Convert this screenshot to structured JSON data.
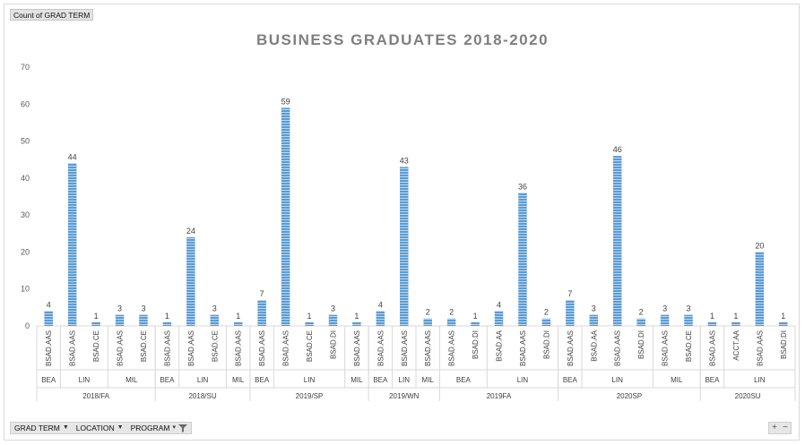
{
  "value_field": "Count of GRAD TERM",
  "filters": [
    {
      "label": "GRAD TERM",
      "icon": "dropdown-triangle"
    },
    {
      "label": "LOCATION",
      "icon": "dropdown-triangle"
    },
    {
      "label": "PROGRAM",
      "icon": "filter-funnel"
    }
  ],
  "zoom": {
    "plus": "+",
    "minus": "−"
  },
  "colors": {
    "bar": "#5b9bd5",
    "bar_stripe": "#ffffff",
    "axis": "#d9d9d9"
  },
  "chart_data": {
    "type": "bar",
    "title": "BUSINESS GRADUATES 2018-2020",
    "xlabel": "",
    "ylabel": "",
    "ylim": [
      0,
      70
    ],
    "yticks": [
      0,
      10,
      20,
      30,
      40,
      50,
      60,
      70
    ],
    "grid": false,
    "legend": "none",
    "terms": [
      {
        "term": "2018/FA",
        "locations": [
          {
            "loc": "BEA",
            "programs": [
              {
                "p": "BSAD.AAS",
                "v": 4
              }
            ]
          },
          {
            "loc": "LIN",
            "programs": [
              {
                "p": "BSAD.AAS",
                "v": 44
              },
              {
                "p": "BSAD.CE",
                "v": 1
              }
            ]
          },
          {
            "loc": "MIL",
            "programs": [
              {
                "p": "BSAD.AAS",
                "v": 3
              },
              {
                "p": "BSAD.CE",
                "v": 3
              }
            ]
          }
        ]
      },
      {
        "term": "2018/SU",
        "locations": [
          {
            "loc": "BEA",
            "programs": [
              {
                "p": "BSAD.AAS",
                "v": 1
              }
            ]
          },
          {
            "loc": "LIN",
            "programs": [
              {
                "p": "BSAD.AAS",
                "v": 24
              },
              {
                "p": "BSAD.CE",
                "v": 3
              }
            ]
          },
          {
            "loc": "MIL",
            "programs": [
              {
                "p": "BSAD.AAS",
                "v": 1
              }
            ]
          }
        ]
      },
      {
        "term": "2019/SP",
        "locations": [
          {
            "loc": "BEA",
            "programs": [
              {
                "p": "BSAD.AAS",
                "v": 7
              }
            ]
          },
          {
            "loc": "LIN",
            "programs": [
              {
                "p": "BSAD.AAS",
                "v": 59
              },
              {
                "p": "BSAD.CE",
                "v": 1
              },
              {
                "p": "BSAD.DI",
                "v": 3
              }
            ]
          },
          {
            "loc": "MIL",
            "programs": [
              {
                "p": "BSAD.AAS",
                "v": 1
              }
            ]
          }
        ]
      },
      {
        "term": "2019/WN",
        "locations": [
          {
            "loc": "BEA",
            "programs": [
              {
                "p": "BSAD.AAS",
                "v": 4
              }
            ]
          },
          {
            "loc": "LIN",
            "programs": [
              {
                "p": "BSAD.AAS",
                "v": 43
              }
            ]
          },
          {
            "loc": "MIL",
            "programs": [
              {
                "p": "BSAD.AAS",
                "v": 2
              }
            ]
          }
        ]
      },
      {
        "term": "2019FA",
        "locations": [
          {
            "loc": "BEA",
            "programs": [
              {
                "p": "BSAD.AAS",
                "v": 2
              },
              {
                "p": "BSAD.DI",
                "v": 1
              }
            ]
          },
          {
            "loc": "LIN",
            "programs": [
              {
                "p": "BSAD.AA",
                "v": 4
              },
              {
                "p": "BSAD.AAS",
                "v": 36
              },
              {
                "p": "BSAD.DI",
                "v": 2
              }
            ]
          }
        ]
      },
      {
        "term": "2020SP",
        "locations": [
          {
            "loc": "BEA",
            "programs": [
              {
                "p": "BSAD.AAS",
                "v": 7
              }
            ]
          },
          {
            "loc": "LIN",
            "programs": [
              {
                "p": "BSAD.AA",
                "v": 3
              },
              {
                "p": "BSAD.AAS",
                "v": 46
              },
              {
                "p": "BSAD.DI",
                "v": 2
              }
            ]
          },
          {
            "loc": "MIL",
            "programs": [
              {
                "p": "BSAD.AAS",
                "v": 3
              },
              {
                "p": "BSAD.CE",
                "v": 3
              }
            ]
          }
        ]
      },
      {
        "term": "2020SU",
        "locations": [
          {
            "loc": "BEA",
            "programs": [
              {
                "p": "BSAD.AAS",
                "v": 1
              }
            ]
          },
          {
            "loc": "LIN",
            "programs": [
              {
                "p": "ACCT.AA",
                "v": 1
              },
              {
                "p": "BSAD.AAS",
                "v": 20
              },
              {
                "p": "BSAD.DI",
                "v": 1
              }
            ]
          }
        ]
      }
    ]
  }
}
